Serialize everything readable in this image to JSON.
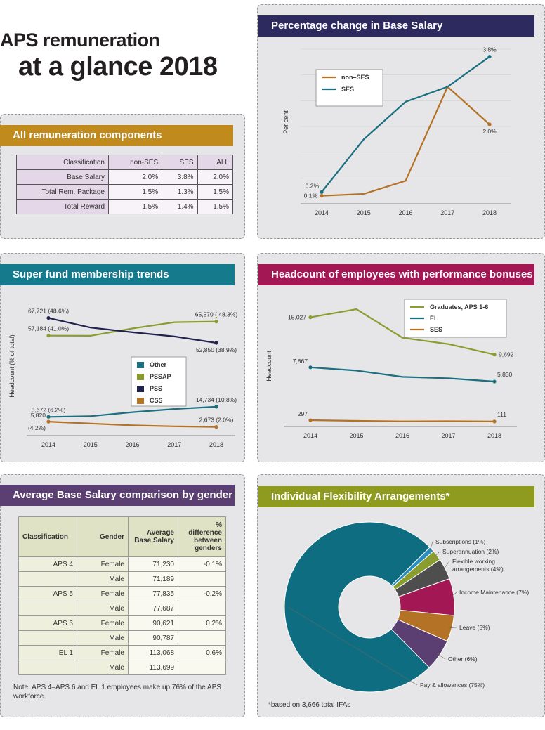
{
  "page": {
    "title_line1": "APS remuneration",
    "title_line2": "at a glance 2018"
  },
  "colors": {
    "orange_banner": "#c08a1c",
    "navy_banner": "#2c2a5e",
    "teal_banner": "#167a8d",
    "magenta_banner": "#a31755",
    "purple_banner": "#5b3f72",
    "olive_banner": "#8f9b1e",
    "teal": "#1a7080",
    "brown": "#b37225",
    "olive": "#8a9d2f",
    "navy": "#22224e"
  },
  "components": {
    "banner": "All remuneration components",
    "headers": [
      "Classification",
      "non-SES",
      "SES",
      "ALL"
    ],
    "rows": [
      [
        "Base Salary",
        "2.0%",
        "3.8%",
        "2.0%"
      ],
      [
        "Total Rem. Package",
        "1.5%",
        "1.3%",
        "1.5%"
      ],
      [
        "Total Reward",
        "1.5%",
        "1.4%",
        "1.5%"
      ]
    ]
  },
  "gender": {
    "banner": "Average Base Salary comparison by gender",
    "headers": [
      "Classification",
      "Gender",
      "Average Base Salary",
      "% difference between genders"
    ],
    "rows": [
      [
        "APS 4",
        "Female",
        "71,230",
        "-0.1%"
      ],
      [
        "",
        "Male",
        "71,189",
        ""
      ],
      [
        "APS 5",
        "Female",
        "77,835",
        "-0.2%"
      ],
      [
        "",
        "Male",
        "77,687",
        ""
      ],
      [
        "APS 6",
        "Female",
        "90,621",
        "0.2%"
      ],
      [
        "",
        "Male",
        "90,787",
        ""
      ],
      [
        "EL 1",
        "Female",
        "113,068",
        "0.6%"
      ],
      [
        "",
        "Male",
        "113,699",
        ""
      ]
    ],
    "note": "Note: APS 4–APS 6 and EL 1 employees make up 76% of the APS workforce."
  },
  "chart_data": [
    {
      "id": "base_salary_change",
      "type": "line",
      "title": "Percentage change in Base Salary",
      "ylabel": "Per cent",
      "x": [
        "2014",
        "2015",
        "2016",
        "2017",
        "2018"
      ],
      "ylim": [
        0,
        4
      ],
      "legend": "top-left",
      "series": [
        {
          "name": "non–SES",
          "color": "#b37225",
          "values": [
            0.1,
            0.15,
            0.5,
            3.0,
            2.0
          ]
        },
        {
          "name": "SES",
          "color": "#1a7080",
          "values": [
            0.2,
            1.6,
            2.6,
            3.0,
            3.8
          ]
        }
      ],
      "data_labels": [
        {
          "text": "3.8%",
          "series": "SES",
          "index": 4,
          "pos": "above"
        },
        {
          "text": "2.0%",
          "series": "non–SES",
          "index": 4,
          "pos": "below"
        },
        {
          "text": "0.2%",
          "series": "SES",
          "index": 0,
          "pos": "left-up"
        },
        {
          "text": "0.1%",
          "series": "non–SES",
          "index": 0,
          "pos": "left"
        }
      ]
    },
    {
      "id": "super_fund",
      "type": "line",
      "title": "Super fund membership trends",
      "ylabel": "Headcount (% of total)",
      "x": [
        "2014",
        "2015",
        "2016",
        "2017",
        "2018"
      ],
      "ylim": [
        0,
        73000
      ],
      "legend": "center-right",
      "series": [
        {
          "name": "Other",
          "color": "#1a7080",
          "values": [
            8672,
            9100,
            11500,
            13400,
            14734
          ]
        },
        {
          "name": "PSSAP",
          "color": "#8a9d2f",
          "values": [
            57184,
            57100,
            61500,
            65200,
            65570
          ]
        },
        {
          "name": "PSS",
          "color": "#22224e",
          "values": [
            67721,
            62000,
            59200,
            56700,
            52850
          ]
        },
        {
          "name": "CSS",
          "color": "#b37225",
          "values": [
            5820,
            4700,
            3600,
            3000,
            2673
          ]
        }
      ],
      "data_labels": [
        {
          "text": "67,721 (48.6%)",
          "series": "PSS",
          "index": 0,
          "pos": "above"
        },
        {
          "text": "57,184 (41.0%)",
          "series": "PSSAP",
          "index": 0,
          "pos": "above"
        },
        {
          "text": "65,570 ( 48.3%)",
          "series": "PSSAP",
          "index": 4,
          "pos": "above"
        },
        {
          "text": "52,850 (38.9%)",
          "series": "PSS",
          "index": 4,
          "pos": "below"
        },
        {
          "text": "8,672 (6.2%)",
          "series": "Other",
          "index": 0,
          "pos": "above"
        },
        {
          "text": "14,734 (10.8%)",
          "series": "Other",
          "index": 4,
          "pos": "above"
        },
        {
          "text": "5,820",
          "series": "CSS",
          "index": 0,
          "pos": "left-up"
        },
        {
          "text": "(4.2%)",
          "series": "CSS",
          "index": 0,
          "pos": "left-down"
        },
        {
          "text": "2,673 (2.0%)",
          "series": "CSS",
          "index": 4,
          "pos": "above"
        }
      ]
    },
    {
      "id": "bonuses",
      "type": "line",
      "title": "Headcount of employees with performance bonuses",
      "ylabel": "Headcount",
      "x": [
        "2014",
        "2015",
        "2016",
        "2017",
        "2018"
      ],
      "ylim": [
        0,
        17000
      ],
      "legend": "top-right",
      "series": [
        {
          "name": "Graduates, APS 1-6",
          "color": "#8a9d2f",
          "values": [
            15027,
            16200,
            12100,
            11200,
            9692
          ]
        },
        {
          "name": "EL",
          "color": "#1a7080",
          "values": [
            7867,
            7400,
            6500,
            6300,
            5830
          ]
        },
        {
          "name": "SES",
          "color": "#b37225",
          "values": [
            297,
            200,
            130,
            150,
            111
          ]
        }
      ],
      "data_labels": [
        {
          "text": "15,027",
          "series": "Graduates, APS 1-6",
          "index": 0,
          "pos": "left"
        },
        {
          "text": "9,692",
          "series": "Graduates, APS 1-6",
          "index": 4,
          "pos": "right"
        },
        {
          "text": "7,867",
          "series": "EL",
          "index": 0,
          "pos": "left-up"
        },
        {
          "text": "5,830",
          "series": "EL",
          "index": 4,
          "pos": "right-up"
        },
        {
          "text": "297",
          "series": "SES",
          "index": 0,
          "pos": "left-up"
        },
        {
          "text": "111",
          "series": "SES",
          "index": 4,
          "pos": "right-up"
        }
      ]
    },
    {
      "id": "ifa",
      "type": "pie",
      "title": "Individual Flexibility Arrangements*",
      "donut": true,
      "slices": [
        {
          "label": "Subscriptions (1%)",
          "value": 1,
          "color": "#2a8fc0"
        },
        {
          "label": "Superannuation (2%)",
          "value": 2,
          "color": "#8a9d2f"
        },
        {
          "label": "Flexible working arrangements (4%)",
          "lines": [
            "Flexible working",
            "arrangements (4%)"
          ],
          "value": 4,
          "color": "#4e4e4e"
        },
        {
          "label": "Income Maintenance (7%)",
          "value": 7,
          "color": "#a31755"
        },
        {
          "label": "Leave (5%)",
          "value": 5,
          "color": "#b37225"
        },
        {
          "label": "Other (6%)",
          "value": 6,
          "color": "#5b3f72"
        },
        {
          "label": "Pay & allowances (75%)",
          "value": 75,
          "color": "#0e6d80"
        }
      ],
      "footnote": "*based on 3,666 total IFAs"
    }
  ]
}
